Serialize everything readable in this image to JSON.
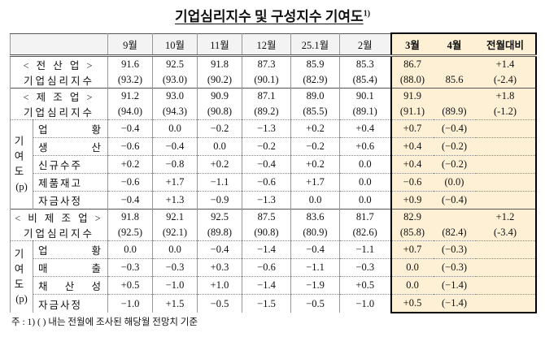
{
  "title": "기업심리지수 및 구성지수 기여도",
  "title_note": "1)",
  "columns": [
    "9월",
    "10월",
    "11월",
    "12월",
    "25.1월",
    "2월",
    "3월",
    "4월",
    "전월대비"
  ],
  "sections": [
    {
      "name": "< 전 산 업 >",
      "index_label": "기업심리지수",
      "index": [
        "91.6",
        "92.5",
        "91.8",
        "87.3",
        "85.9",
        "85.3",
        "86.7",
        null,
        "+1.4"
      ],
      "forecast": [
        "(93.2)",
        "(93.0)",
        "(90.2)",
        "(90.1)",
        "(82.9)",
        "(85.4)",
        "(88.0)",
        "85.6",
        "(-2.4)"
      ]
    },
    {
      "name": "< 제 조 업 >",
      "index_label": "기업심리지수",
      "index": [
        "91.2",
        "93.0",
        "90.9",
        "87.1",
        "89.0",
        "90.1",
        "91.9",
        null,
        "+1.8"
      ],
      "forecast": [
        "(94.0)",
        "(94.3)",
        "(90.8)",
        "(89.2)",
        "(85.5)",
        "(89.1)",
        "(91.1)",
        "(89.9)",
        "(-1.2)"
      ],
      "contribution_label": "기여도",
      "contribution_unit": "(p)",
      "contributions": [
        {
          "label": "업 황",
          "values": [
            "−0.4",
            "0.0",
            "−0.2",
            "−1.3",
            "+0.2",
            "+0.4",
            "+0.7",
            "(−0.4)"
          ]
        },
        {
          "label": "생 산",
          "values": [
            "−0.6",
            "−0.4",
            "0.0",
            "−0.2",
            "−0.2",
            "+0.6",
            "+0.4",
            "(−0.2)"
          ]
        },
        {
          "label": "신규수주",
          "values": [
            "+0.2",
            "−0.8",
            "+0.2",
            "−0.4",
            "+0.2",
            "0.0",
            "+0.4",
            "(−0.2)"
          ]
        },
        {
          "label": "제품재고",
          "values": [
            "−0.6",
            "+1.7",
            "−1.1",
            "−0.6",
            "+1.7",
            "0.0",
            "−0.6",
            "(0.0)"
          ]
        },
        {
          "label": "자금사정",
          "values": [
            "−0.4",
            "+1.3",
            "−0.9",
            "−1.3",
            "0.0",
            "0.0",
            "+0.9",
            "(−0.4)"
          ]
        }
      ]
    },
    {
      "name": "< 비 제 조 업 >",
      "index_label": "기업심리지수",
      "index": [
        "91.8",
        "92.1",
        "92.5",
        "87.5",
        "83.6",
        "81.7",
        "82.9",
        null,
        "+1.2"
      ],
      "forecast": [
        "(92.5)",
        "(92.1)",
        "(89.8)",
        "(90.8)",
        "(80.9)",
        "(82.6)",
        "(85.8)",
        "(82.4)",
        "(-3.4)"
      ],
      "contribution_label": "기여도",
      "contribution_unit": "(p)",
      "contributions": [
        {
          "label": "업 황",
          "values": [
            "0.0",
            "0.0",
            "−0.4",
            "−1.4",
            "−0.4",
            "−1.1",
            "+0.7",
            "(−0.3)"
          ]
        },
        {
          "label": "매 출",
          "values": [
            "−0.3",
            "−0.3",
            "+0.3",
            "−0.6",
            "−1.1",
            "−0.3",
            "0.0",
            "(−0.3)"
          ]
        },
        {
          "label": "채 산 성",
          "values": [
            "+0.5",
            "−1.0",
            "+1.0",
            "−1.4",
            "−1.9",
            "+0.5",
            "0.0",
            "(−1.4)"
          ]
        },
        {
          "label": "자금사정",
          "values": [
            "−1.0",
            "+1.5",
            "−0.5",
            "−1.5",
            "−0.5",
            "−1.0",
            "+0.5",
            "(−1.4)"
          ]
        }
      ]
    }
  ],
  "footnote": "주 : 1) (   ) 내는 전월에 조사된 해당월 전망치 기준"
}
